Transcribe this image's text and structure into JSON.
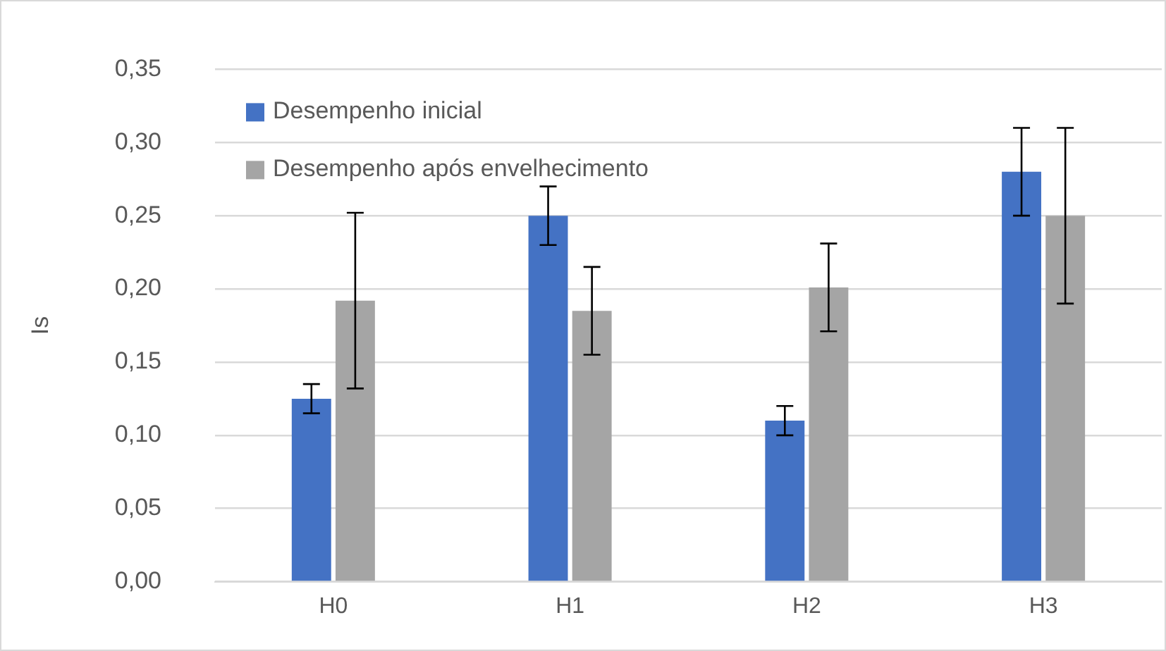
{
  "chart_data": {
    "type": "bar",
    "ylabel": "Is",
    "categories": [
      "H0",
      "H1",
      "H2",
      "H3"
    ],
    "series": [
      {
        "name": "Desempenho inicial",
        "color": "#4472c4",
        "values": [
          0.125,
          0.25,
          0.11,
          0.28
        ],
        "errors": [
          0.01,
          0.02,
          0.01,
          0.03
        ]
      },
      {
        "name": "Desempenho após envelhecimento",
        "color": "#a5a5a5",
        "values": [
          0.192,
          0.185,
          0.201,
          0.25
        ],
        "errors": [
          0.06,
          0.03,
          0.03,
          0.06
        ]
      }
    ],
    "ylim": [
      0,
      0.35
    ],
    "yticks": [
      {
        "value": 0,
        "label": "0,00"
      },
      {
        "value": 0.05,
        "label": "0,05"
      },
      {
        "value": 0.1,
        "label": "0,10"
      },
      {
        "value": 0.15,
        "label": "0,15"
      },
      {
        "value": 0.2,
        "label": "0,20"
      },
      {
        "value": 0.25,
        "label": "0,25"
      },
      {
        "value": 0.3,
        "label": "0,30"
      },
      {
        "value": 0.35,
        "label": "0,35"
      }
    ],
    "grid": "y",
    "legend": "top left"
  }
}
